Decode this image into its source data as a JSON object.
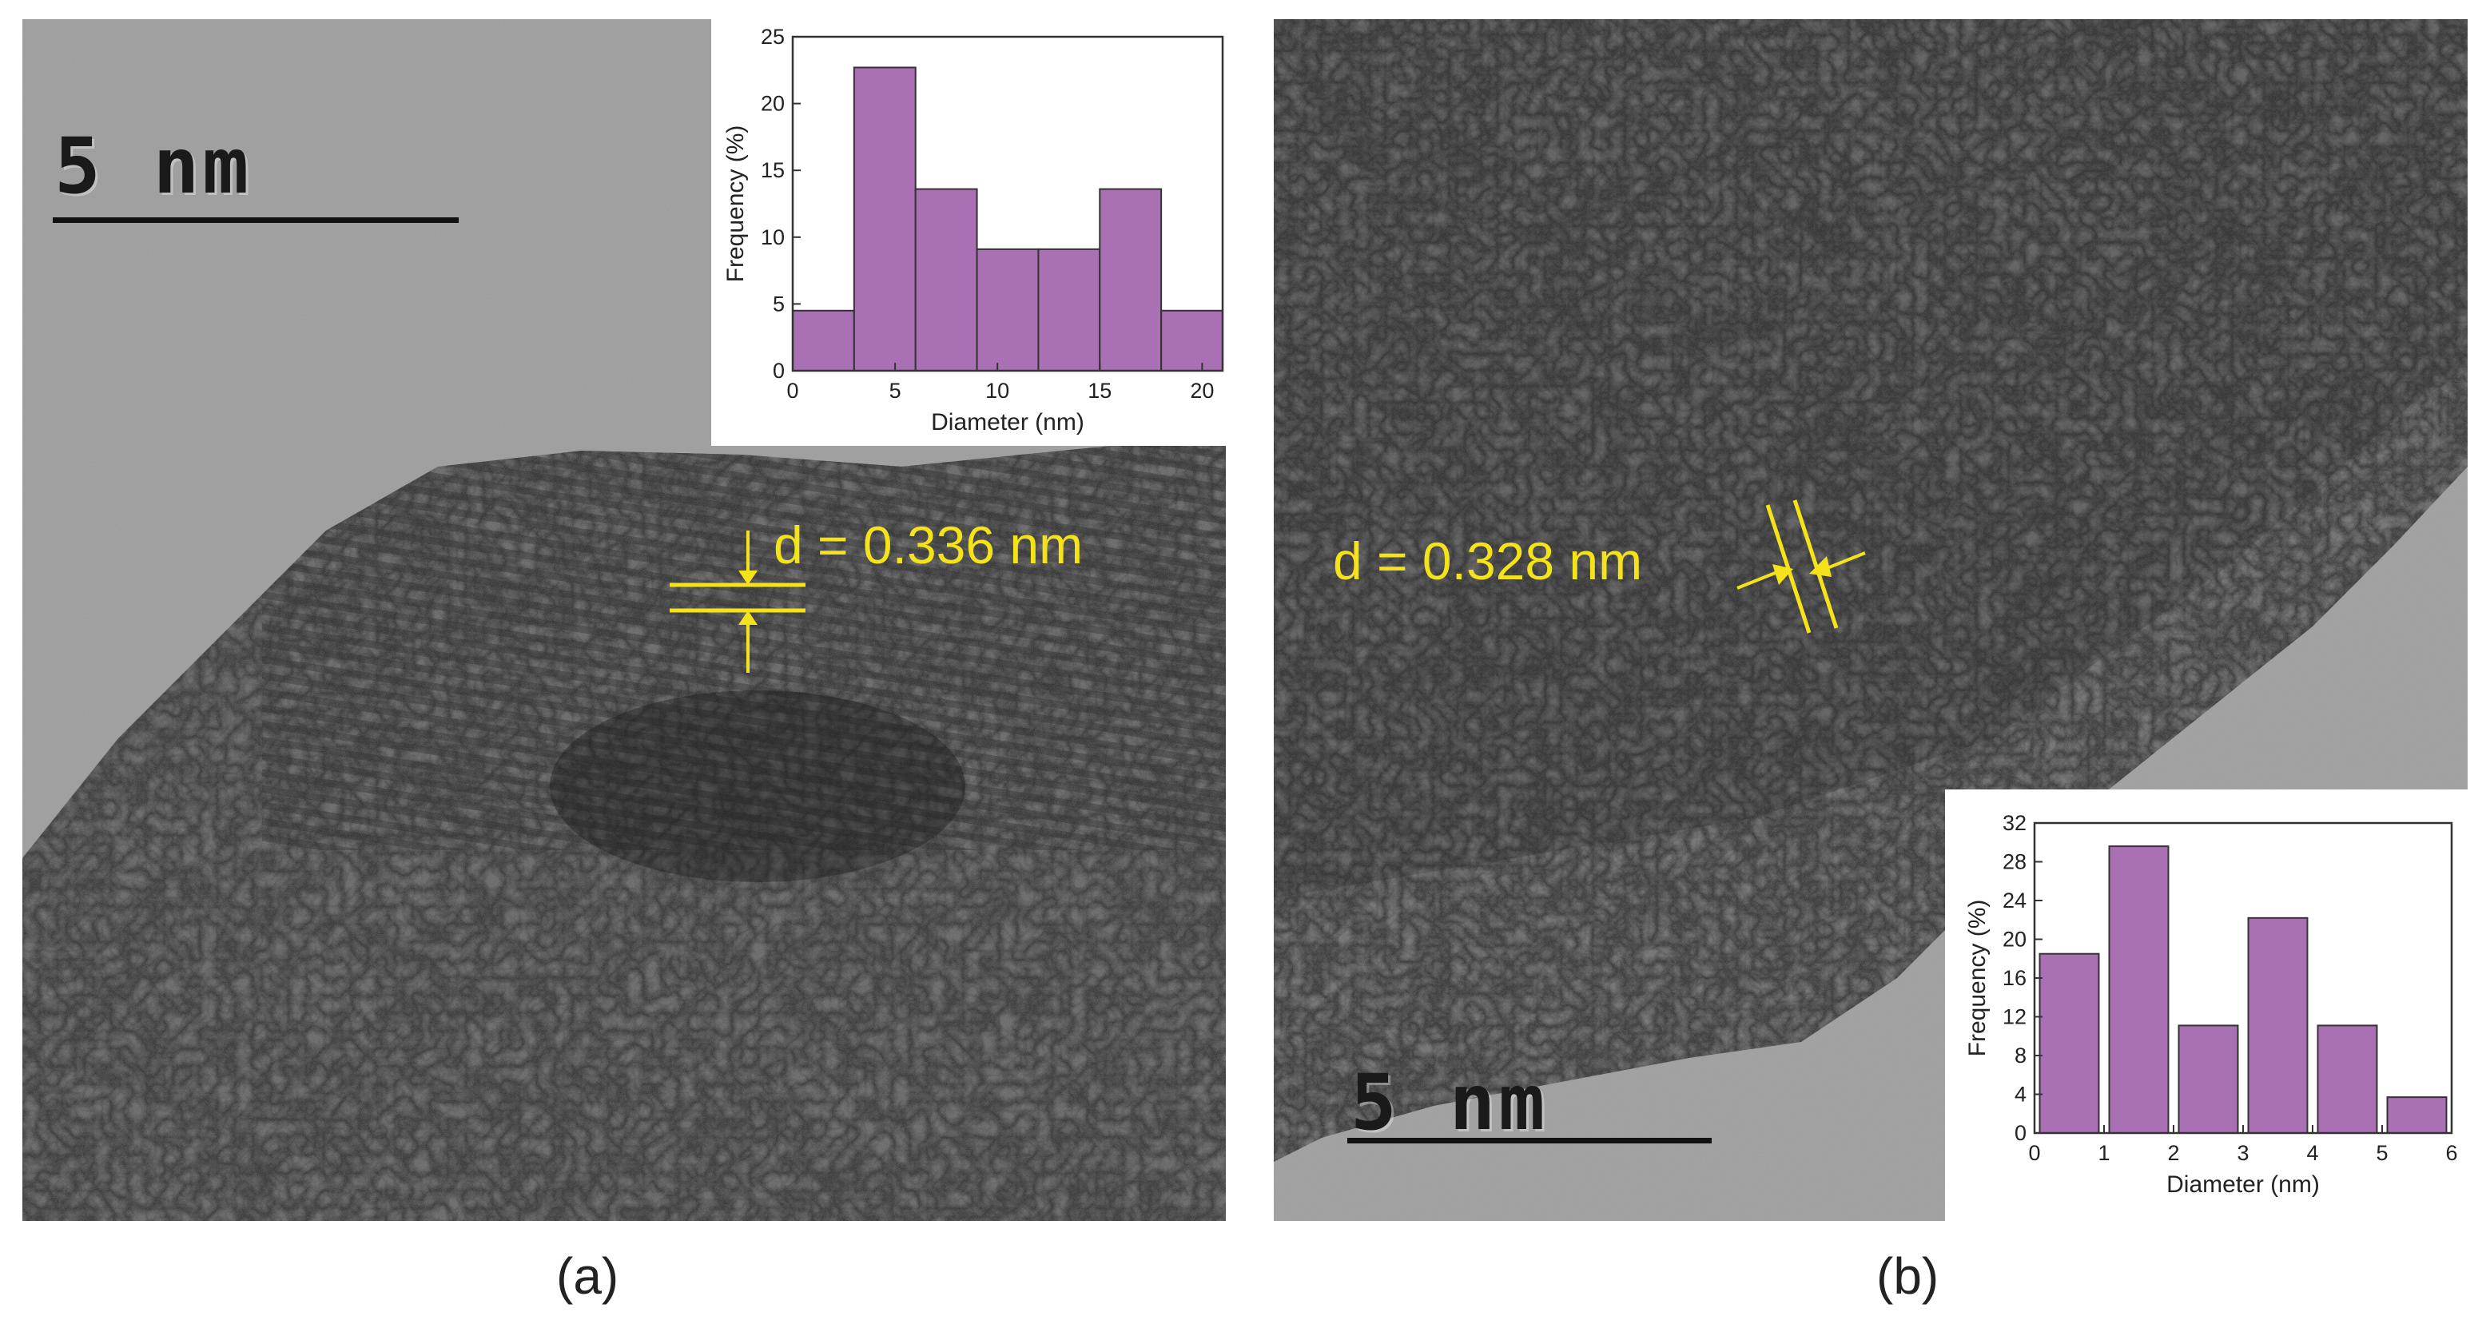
{
  "panels": [
    {
      "label": "(a)",
      "scale_bar": "5 nm",
      "lattice_spacing": "d = 0.336 nm",
      "inset": {
        "type": "bar",
        "xlabel": "Diameter (nm)",
        "ylabel": "Frequency (%)",
        "xlim": [
          0,
          21
        ],
        "ylim": [
          0,
          25
        ],
        "xticks": [
          0,
          5,
          10,
          15,
          20
        ],
        "yticks": [
          0,
          5,
          10,
          15,
          20,
          25
        ],
        "bin_width": 3,
        "bin_centers": [
          1.5,
          4.5,
          7.5,
          10.5,
          13.5,
          16.5,
          19.5
        ],
        "values": [
          4.5,
          22.7,
          13.6,
          9.1,
          9.1,
          13.6,
          4.5
        ],
        "bar_color": "#a970b3"
      }
    },
    {
      "label": "(b)",
      "scale_bar": "5 nm",
      "lattice_spacing": "d = 0.328 nm",
      "inset": {
        "type": "bar",
        "xlabel": "Diameter (nm)",
        "ylabel": "Frequency (%)",
        "xlim": [
          0,
          6
        ],
        "ylim": [
          0,
          32
        ],
        "xticks": [
          0,
          1,
          2,
          3,
          4,
          5,
          6
        ],
        "yticks": [
          0,
          4,
          8,
          12,
          16,
          20,
          24,
          28,
          32
        ],
        "bin_width": 0.85,
        "bin_centers": [
          0.5,
          1.5,
          2.5,
          3.5,
          4.5,
          5.5
        ],
        "values": [
          18.5,
          29.6,
          11.1,
          22.2,
          11.1,
          3.7
        ],
        "bar_color": "#a970b3"
      }
    }
  ]
}
